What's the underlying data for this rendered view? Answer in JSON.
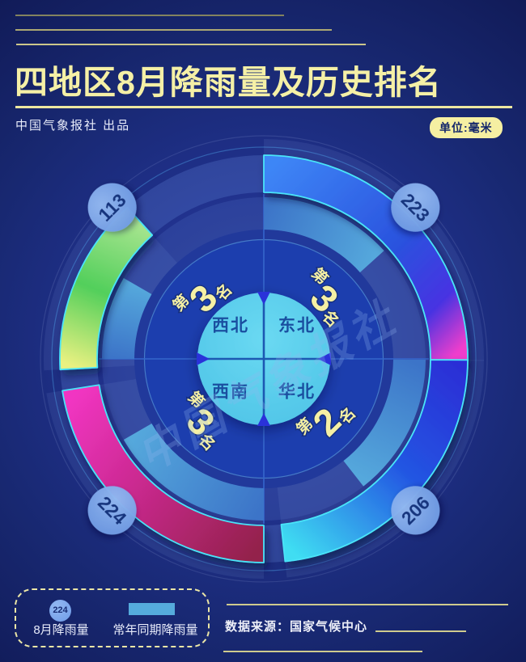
{
  "header": {
    "title": "四地区8月降雨量及历史排名",
    "publisher": "中国气象报社 出品",
    "unit_badge": "单位:毫米"
  },
  "watermark": "中国气象报社",
  "chart_data": {
    "type": "radial-quadrant-bar",
    "title": "四地区8月降雨量及历史排名",
    "unit": "毫米",
    "legend_position": "bottom-left",
    "accent_border_color": "#49e4f8",
    "normal_arc_color_start": "#3c74c8",
    "normal_arc_color_end": "#55a8dc",
    "regions": [
      {
        "name": "东北",
        "value": 223,
        "rank": "第3名",
        "rank_prefix": "第",
        "rank_digit": "3",
        "rank_suffix": "名",
        "quadrant_start": 0,
        "quadrant_end": 90,
        "value_arc_start": 0,
        "value_arc_end": 90.5,
        "normal_arc_start": 0,
        "normal_arc_end": 48,
        "badge_angle": 45,
        "value_stops": [
          {
            "o": 0,
            "c": "#3e86f6"
          },
          {
            "o": 0.55,
            "c": "#2a52de"
          },
          {
            "o": 0.82,
            "c": "#4733e2"
          },
          {
            "o": 1,
            "c": "#ef3ecc"
          }
        ]
      },
      {
        "name": "华北",
        "value": 206,
        "rank": "第2名",
        "rank_prefix": "第",
        "rank_digit": "2",
        "rank_suffix": "名",
        "quadrant_start": 90,
        "quadrant_end": 180,
        "value_arc_start": 90.3,
        "value_arc_end": 174,
        "normal_arc_start": 90.3,
        "normal_arc_end": 142,
        "badge_angle": 135,
        "value_stops": [
          {
            "o": 0,
            "c": "#2b2fd6"
          },
          {
            "o": 0.45,
            "c": "#2355e2"
          },
          {
            "o": 1,
            "c": "#3fddf2"
          }
        ]
      },
      {
        "name": "西南",
        "value": 224,
        "rank": "第3名",
        "rank_prefix": "第",
        "rank_digit": "3",
        "rank_suffix": "名",
        "quadrant_start": 180,
        "quadrant_end": 270,
        "value_arc_start": 180,
        "value_arc_end": 261,
        "normal_arc_start": 180,
        "normal_arc_end": 240,
        "badge_angle": 225,
        "value_stops": [
          {
            "o": 0,
            "c": "#93224b"
          },
          {
            "o": 0.55,
            "c": "#c9298e"
          },
          {
            "o": 1,
            "c": "#f135c2"
          }
        ]
      },
      {
        "name": "西北",
        "value": 113,
        "rank": "第3名",
        "rank_prefix": "第",
        "rank_digit": "3",
        "rank_suffix": "名",
        "quadrant_start": 270,
        "quadrant_end": 360,
        "value_arc_start": 267,
        "value_arc_end": 318,
        "normal_arc_start": 270,
        "normal_arc_end": 300,
        "badge_angle": 315,
        "value_stops": [
          {
            "o": 0,
            "c": "#e9f181"
          },
          {
            "o": 0.5,
            "c": "#52cf5b"
          },
          {
            "o": 1,
            "c": "#a9e590"
          }
        ]
      }
    ]
  },
  "legend": {
    "aug_sample": "224",
    "aug_label": "8月降雨量",
    "normal_label": "常年同期降雨量"
  },
  "footer": {
    "source": "数据来源：国家气候中心"
  }
}
